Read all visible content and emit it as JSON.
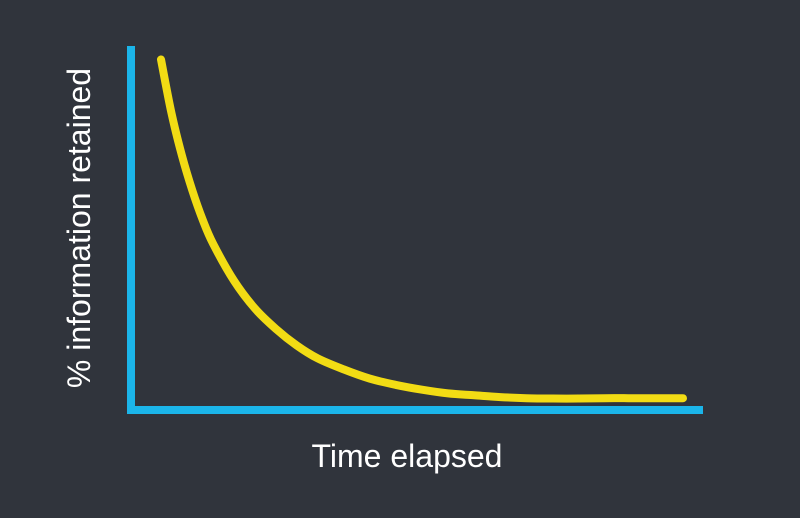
{
  "colors": {
    "background": "#30343c",
    "axis": "#1bb5ea",
    "curve": "#f2dc14",
    "text": "#ffffff"
  },
  "chart_data": {
    "type": "line",
    "title": "",
    "xlabel": "Time elapsed",
    "ylabel": "% information retained",
    "show_ticks": false,
    "grid": false,
    "legend": "none",
    "xlim": [
      0,
      100
    ],
    "ylim": [
      0,
      100
    ],
    "series": [
      {
        "x": [
          0,
          2,
          4,
          6,
          8,
          10,
          14,
          18,
          22,
          26,
          30,
          35,
          40,
          45,
          50,
          55,
          60,
          65,
          70,
          75,
          80,
          85,
          90,
          95,
          100
        ],
        "y": [
          95,
          80.5,
          69,
          59.5,
          51.5,
          45,
          35,
          27.5,
          22,
          17.5,
          14,
          11,
          8.5,
          6.8,
          5.5,
          4.5,
          4,
          3.5,
          3.2,
          3.1,
          3.1,
          3.2,
          3.2,
          3.2,
          3.2
        ]
      }
    ]
  }
}
